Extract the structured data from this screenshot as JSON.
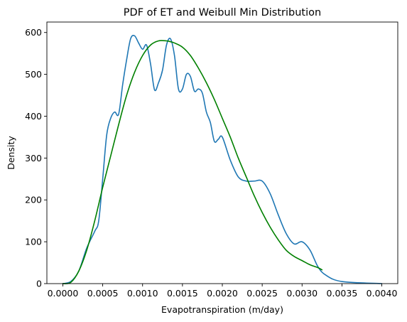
{
  "chart_data": {
    "type": "line",
    "title": "PDF of ET and Weibull Min Distribution",
    "xlabel": "Evapotranspiration (m/day)",
    "ylabel": "Density",
    "xlim": [
      -0.0002,
      0.0042
    ],
    "ylim": [
      0,
      625
    ],
    "xticks": [
      "0.0000",
      "0.0005",
      "0.0010",
      "0.0015",
      "0.0020",
      "0.0025",
      "0.0030",
      "0.0035",
      "0.0040"
    ],
    "xtick_values": [
      0.0,
      0.0005,
      0.001,
      0.0015,
      0.002,
      0.0025,
      0.003,
      0.0035,
      0.004
    ],
    "yticks": [
      "0",
      "100",
      "200",
      "300",
      "400",
      "500",
      "600"
    ],
    "ytick_values": [
      0,
      100,
      200,
      300,
      400,
      500,
      600
    ],
    "grid": false,
    "legend": "none",
    "series": [
      {
        "color": "#1f77b4",
        "x": [
          0.0,
          0.0001,
          0.0002,
          0.0003,
          0.0004,
          0.00045,
          0.0005,
          0.00055,
          0.0006,
          0.00065,
          0.0007,
          0.00075,
          0.0008,
          0.00085,
          0.0009,
          0.00095,
          0.001,
          0.00105,
          0.0011,
          0.00115,
          0.0012,
          0.00125,
          0.0013,
          0.00135,
          0.0014,
          0.00145,
          0.0015,
          0.00155,
          0.0016,
          0.00165,
          0.0017,
          0.00175,
          0.0018,
          0.00185,
          0.0019,
          0.00195,
          0.002,
          0.0021,
          0.0022,
          0.0023,
          0.0024,
          0.0025,
          0.0026,
          0.0027,
          0.0028,
          0.0029,
          0.003,
          0.0031,
          0.0032,
          0.0033,
          0.0035,
          0.004
        ],
        "values": [
          0,
          5,
          30,
          85,
          125,
          150,
          250,
          355,
          395,
          410,
          405,
          475,
          535,
          585,
          592,
          575,
          560,
          570,
          525,
          463,
          480,
          510,
          570,
          585,
          545,
          465,
          465,
          500,
          495,
          460,
          465,
          455,
          410,
          385,
          340,
          345,
          350,
          295,
          255,
          245,
          245,
          245,
          215,
          165,
          120,
          95,
          100,
          80,
          40,
          20,
          5,
          0
        ]
      },
      {
        "color": "#008000",
        "x": [
          0.0,
          0.0001,
          0.0002,
          0.0003,
          0.0004,
          0.0005,
          0.0006,
          0.0007,
          0.0008,
          0.0009,
          0.001,
          0.0011,
          0.0012,
          0.0013,
          0.00135,
          0.0014,
          0.0015,
          0.0016,
          0.0017,
          0.0018,
          0.0019,
          0.002,
          0.0021,
          0.0022,
          0.0023,
          0.0024,
          0.0025,
          0.0026,
          0.0027,
          0.0028,
          0.0029,
          0.003,
          0.0031,
          0.0032,
          0.00325
        ],
        "values": [
          0,
          3,
          30,
          80,
          150,
          230,
          305,
          380,
          450,
          505,
          545,
          570,
          580,
          580,
          578,
          575,
          565,
          545,
          515,
          480,
          440,
          395,
          350,
          300,
          255,
          210,
          170,
          135,
          105,
          80,
          65,
          55,
          45,
          38,
          33
        ]
      }
    ]
  }
}
